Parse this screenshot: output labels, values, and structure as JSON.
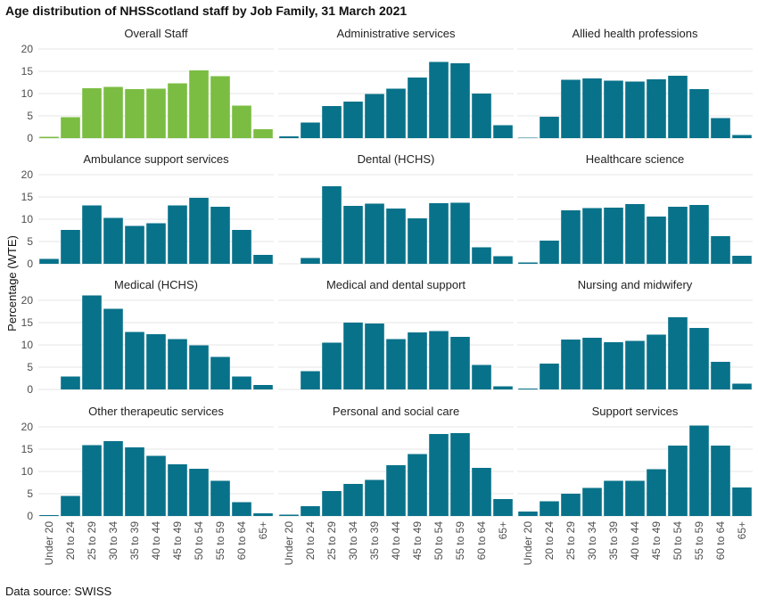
{
  "title": "Age distribution of NHSScotland staff by Job Family, 31 March 2021",
  "source": "Data source: SWISS",
  "colors": {
    "overall": "#7bbd42",
    "family": "#08728a"
  },
  "chart_data": {
    "type": "bar",
    "ylabel": "Percentage (WTE)",
    "categories": [
      "Under 20",
      "20 to 24",
      "25 to 29",
      "30 to 34",
      "35 to 39",
      "40 to 44",
      "45 to 49",
      "50 to 54",
      "55 to 59",
      "60 to 64",
      "65+"
    ],
    "yticks": [
      0,
      5,
      10,
      15,
      20
    ],
    "ylim": [
      0,
      22
    ],
    "grid": true,
    "panels": [
      {
        "name": "Overall Staff",
        "values": [
          0.3,
          4.7,
          11.2,
          11.5,
          11.0,
          11.1,
          12.3,
          15.2,
          13.9,
          7.3,
          2.0
        ]
      },
      {
        "name": "Administrative services",
        "values": [
          0.4,
          3.5,
          7.2,
          8.2,
          9.9,
          11.1,
          13.6,
          17.1,
          16.8,
          10.0,
          2.9
        ]
      },
      {
        "name": "Allied health professions",
        "values": [
          0.1,
          4.8,
          13.1,
          13.4,
          12.9,
          12.7,
          13.2,
          14.0,
          11.0,
          4.5,
          0.7
        ]
      },
      {
        "name": "Ambulance support services",
        "values": [
          1.1,
          7.6,
          13.1,
          10.3,
          8.5,
          9.1,
          13.1,
          14.8,
          12.8,
          7.6,
          2.0
        ]
      },
      {
        "name": "Dental (HCHS)",
        "values": [
          0.0,
          1.3,
          17.4,
          13.0,
          13.5,
          12.4,
          10.2,
          13.6,
          13.7,
          3.7,
          1.7
        ]
      },
      {
        "name": "Healthcare science",
        "values": [
          0.3,
          5.2,
          12.0,
          12.5,
          12.6,
          13.4,
          10.6,
          12.8,
          13.2,
          6.2,
          1.8
        ]
      },
      {
        "name": "Medical (HCHS)",
        "values": [
          0.0,
          2.9,
          21.1,
          18.1,
          12.9,
          12.4,
          11.3,
          9.9,
          7.3,
          2.9,
          1.0
        ]
      },
      {
        "name": "Medical and dental support",
        "values": [
          0.0,
          4.1,
          10.5,
          15.0,
          14.8,
          11.3,
          12.8,
          13.1,
          11.8,
          5.5,
          0.7
        ]
      },
      {
        "name": "Nursing and midwifery",
        "values": [
          0.2,
          5.8,
          11.2,
          11.6,
          10.6,
          10.9,
          12.3,
          16.2,
          13.8,
          6.2,
          1.3
        ]
      },
      {
        "name": "Other therapeutic services",
        "values": [
          0.2,
          4.5,
          15.9,
          16.8,
          15.4,
          13.5,
          11.6,
          10.6,
          7.9,
          3.1,
          0.6
        ]
      },
      {
        "name": "Personal and social care",
        "values": [
          0.3,
          2.2,
          5.6,
          7.2,
          8.1,
          11.4,
          13.9,
          18.4,
          18.6,
          10.8,
          3.8
        ]
      },
      {
        "name": "Support services",
        "values": [
          1.0,
          3.3,
          5.0,
          6.3,
          7.9,
          7.9,
          10.5,
          15.8,
          20.3,
          15.8,
          6.4
        ]
      }
    ]
  }
}
